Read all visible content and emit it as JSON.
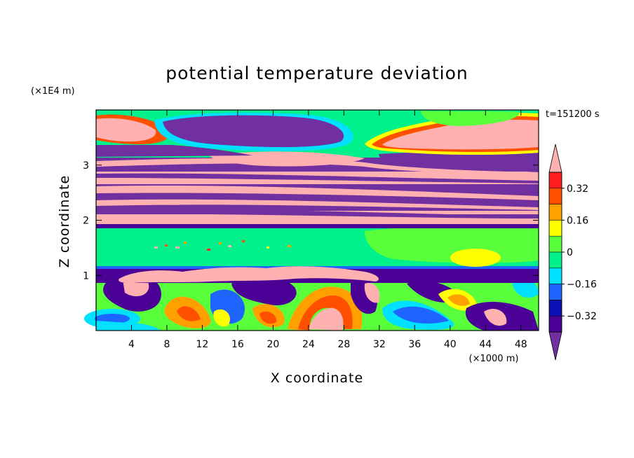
{
  "chart_data": {
    "type": "heatmap",
    "title": "potential temperature deviation",
    "time_label": "t=151200 s",
    "xlabel": "X coordinate",
    "ylabel": "Z coordinate",
    "x_unit": "(×1000 m)",
    "y_unit": "(×1E4 m)",
    "xlim": [
      0,
      50
    ],
    "ylim": [
      0,
      4
    ],
    "x_ticks": [
      "4",
      "8",
      "12",
      "16",
      "20",
      "24",
      "28",
      "32",
      "36",
      "40",
      "44",
      "48"
    ],
    "y_ticks": [
      "1",
      "2",
      "3"
    ],
    "colorbar": {
      "levels": [
        -0.4,
        -0.32,
        -0.24,
        -0.16,
        -0.08,
        0,
        0.08,
        0.16,
        0.24,
        0.32,
        0.4
      ],
      "labels": [
        "0.32",
        "0.16",
        "0",
        "−0.16",
        "−0.32"
      ],
      "colors": [
        "#7030a0",
        "#4b0096",
        "#0a10b4",
        "#1e64ff",
        "#00e0ff",
        "#00f08c",
        "#5aff3c",
        "#ffff00",
        "#ffa000",
        "#ff5000",
        "#ff1e1e",
        "#ffb0b0"
      ]
    }
  }
}
